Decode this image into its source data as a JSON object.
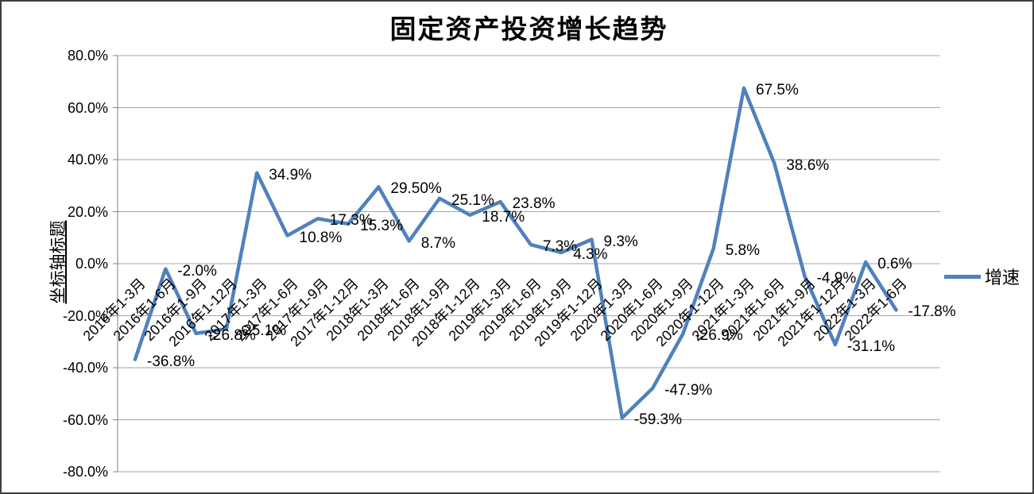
{
  "chart_data": {
    "type": "line",
    "title": "固定资产投资增长趋势",
    "xlabel": "",
    "ylabel": "坐标轴标题",
    "legend_position": "right",
    "grid": true,
    "ylim": [
      -80,
      80
    ],
    "y_ticks": {
      "values": [
        80,
        60,
        40,
        20,
        0,
        -20,
        -40,
        -60,
        -80
      ],
      "labels": [
        "80.0%",
        "60.0%",
        "40.0%",
        "20.0%",
        "0.0%",
        "-20.0%",
        "-40.0%",
        "-60.0%",
        "-80.0%"
      ]
    },
    "categories": [
      "2016年1-3月",
      "2016年1-6月",
      "2016年1-9月",
      "2016年1-12月",
      "2017年1-3月",
      "2017年1-6月",
      "2017年1-9月",
      "2017年1-12月",
      "2018年1-3月",
      "2018年1-6月",
      "2018年1-9月",
      "2018年1-12月",
      "2019年1-3月",
      "2019年1-6月",
      "2019年1-9月",
      "2019年1-12月",
      "2020年1-3月",
      "2020年1-6月",
      "2020年1-9月",
      "2020年1-12月",
      "2021年1-3月",
      "2021年1-6月",
      "2021年1-9月",
      "2021年1-12月",
      "2022年1-3月",
      "2022年1-6月"
    ],
    "series": [
      {
        "name": "增速",
        "values": [
          -36.8,
          -2.0,
          -26.8,
          -25.1,
          34.9,
          10.8,
          17.3,
          15.3,
          29.5,
          8.7,
          25.1,
          18.7,
          23.8,
          7.3,
          4.3,
          9.3,
          -59.3,
          -47.9,
          -26.9,
          5.8,
          67.5,
          38.6,
          -4.9,
          -31.1,
          0.6,
          -17.8
        ],
        "data_labels": [
          "-36.8%",
          "-2.0%",
          "-26.8%",
          "-25.1%",
          "34.9%",
          "10.8%",
          "17.3%",
          "15.3%",
          "29.50%",
          "8.7%",
          "25.1%",
          "18.7%",
          "23.8%",
          "7.3%",
          "4.3%",
          "9.3%",
          "-59.3%",
          "-47.9%",
          "-26.9%",
          "5.8%",
          "67.5%",
          "38.6%",
          "-4.9%",
          "-31.1%",
          "0.6%",
          "-17.8%"
        ]
      }
    ],
    "colors": {
      "series_line": "#4F81BD",
      "gridline": "#A6A6A6",
      "axis_line": "#808080",
      "text": "#000000"
    }
  }
}
